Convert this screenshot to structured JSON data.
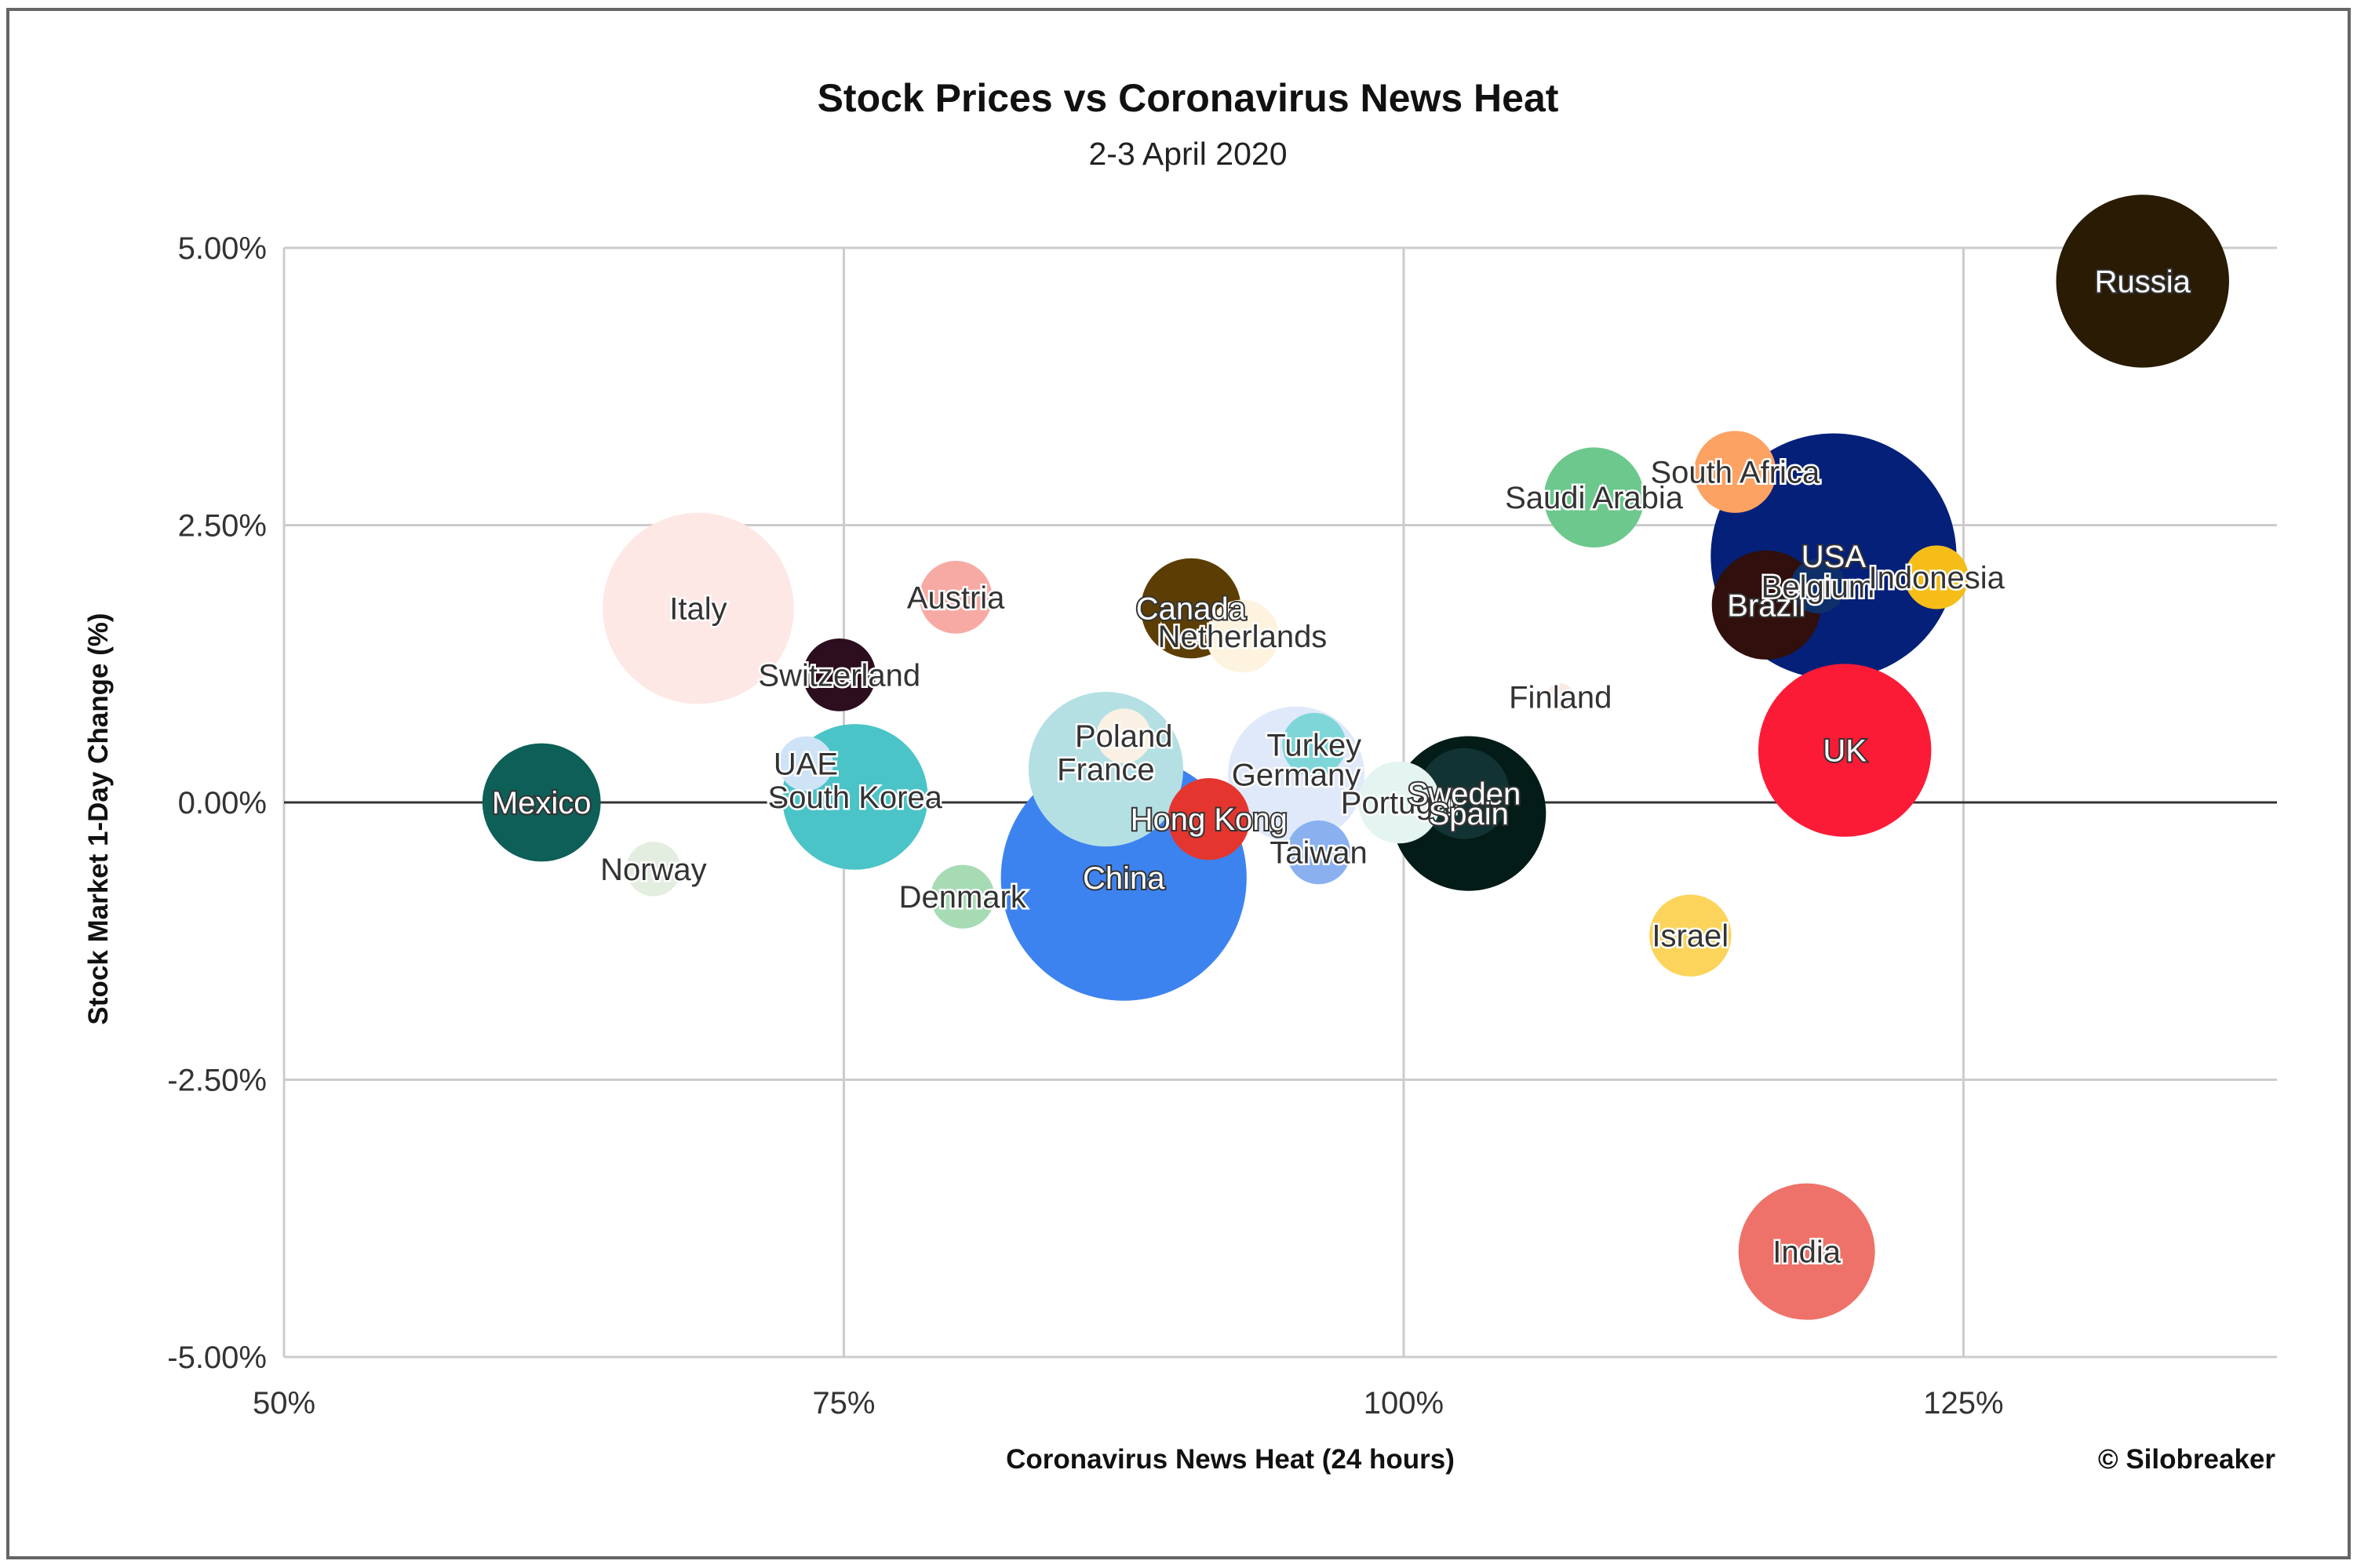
{
  "chart_data": {
    "type": "scatter",
    "title": "Stock Prices vs Coronavirus News Heat",
    "subtitle": "2-3 April 2020",
    "xlabel": "Coronavirus News Heat (24 hours)",
    "ylabel": "Stock Market 1-Day Change (%)",
    "credit": "© Silobreaker",
    "xlim": [
      50,
      139
    ],
    "ylim": [
      -5,
      5
    ],
    "x_ticks": [
      50,
      75,
      100,
      125
    ],
    "x_tick_labels": [
      "50%",
      "75%",
      "100%",
      "125%"
    ],
    "y_ticks": [
      5,
      2.5,
      0,
      -2.5,
      -5
    ],
    "y_tick_labels": [
      "5.00%",
      "2.50%",
      "0.00%",
      "-2.50%",
      "-5.00%"
    ],
    "grid": true,
    "legend": "none",
    "points": [
      {
        "label": "Mexico",
        "x": 61.5,
        "y": 0.0,
        "size": 13,
        "color": "#0d5f58"
      },
      {
        "label": "Norway",
        "x": 66.5,
        "y": -0.6,
        "size": 6,
        "color": "#e4eee0"
      },
      {
        "label": "Italy",
        "x": 68.5,
        "y": 1.75,
        "size": 21,
        "color": "#fde8e6"
      },
      {
        "label": "Switzerland",
        "x": 74.8,
        "y": 1.15,
        "size": 8,
        "color": "#2c0e1e"
      },
      {
        "label": "UAE",
        "x": 73.3,
        "y": 0.35,
        "size": 6,
        "color": "#cfe3f7"
      },
      {
        "label": "South Korea",
        "x": 75.5,
        "y": 0.05,
        "size": 16,
        "color": "#4bc4c8"
      },
      {
        "label": "Austria",
        "x": 80.0,
        "y": 1.85,
        "size": 8,
        "color": "#f7aaa3"
      },
      {
        "label": "Denmark",
        "x": 80.3,
        "y": -0.85,
        "size": 7,
        "color": "#a6dbb4"
      },
      {
        "label": "Poland",
        "x": 87.5,
        "y": 0.6,
        "size": 6,
        "color": "#faf1e4"
      },
      {
        "label": "France",
        "x": 86.7,
        "y": 0.3,
        "size": 17,
        "color": "#b4e0e4"
      },
      {
        "label": "China",
        "x": 87.5,
        "y": -0.68,
        "size": 27,
        "color": "#3d83f0"
      },
      {
        "label": "Canada",
        "x": 90.5,
        "y": 1.75,
        "size": 11,
        "color": "#5c3e05"
      },
      {
        "label": "Netherlands",
        "x": 92.8,
        "y": 1.5,
        "size": 8,
        "color": "#fdf3df"
      },
      {
        "label": "Hong Kong",
        "x": 91.3,
        "y": -0.15,
        "size": 9,
        "color": "#e4362f"
      },
      {
        "label": "Turkey",
        "x": 96.0,
        "y": 0.52,
        "size": 7,
        "color": "#7ed6d8"
      },
      {
        "label": "Germany",
        "x": 95.2,
        "y": 0.25,
        "size": 15,
        "color": "#dfe9f9"
      },
      {
        "label": "Taiwan",
        "x": 96.2,
        "y": -0.45,
        "size": 7,
        "color": "#8ab0f0"
      },
      {
        "label": "Portugal",
        "x": 99.8,
        "y": 0.0,
        "size": 9,
        "color": "#e4f4f0"
      },
      {
        "label": "Sweden",
        "x": 102.7,
        "y": 0.08,
        "size": 10,
        "color": "#123333"
      },
      {
        "label": "Spain",
        "x": 102.9,
        "y": -0.1,
        "size": 17,
        "color": "#041c18"
      },
      {
        "label": "Finland",
        "x": 107.0,
        "y": 0.95,
        "size": 3,
        "color": "#fbeae0"
      },
      {
        "label": "Saudi Arabia",
        "x": 108.5,
        "y": 2.75,
        "size": 11,
        "color": "#6dc88d"
      },
      {
        "label": "South Africa",
        "x": 114.8,
        "y": 2.98,
        "size": 9,
        "color": "#fca263"
      },
      {
        "label": "Israel",
        "x": 112.8,
        "y": -1.2,
        "size": 9,
        "color": "#fcd45c"
      },
      {
        "label": "Brazil",
        "x": 116.2,
        "y": 1.78,
        "size": 12,
        "color": "#300f0c"
      },
      {
        "label": "Belgium",
        "x": 118.5,
        "y": 1.95,
        "size": 6,
        "color": "#0e2f6a"
      },
      {
        "label": "USA",
        "x": 119.2,
        "y": 2.22,
        "size": 27,
        "color": "#042079"
      },
      {
        "label": "UK",
        "x": 119.7,
        "y": 0.47,
        "size": 19,
        "color": "#fb1b36"
      },
      {
        "label": "Indonesia",
        "x": 123.8,
        "y": 2.03,
        "size": 7,
        "color": "#f6bd19"
      },
      {
        "label": "India",
        "x": 118.0,
        "y": -4.05,
        "size": 15,
        "color": "#ee7269"
      },
      {
        "label": "Russia",
        "x": 133.0,
        "y": 4.7,
        "size": 19,
        "color": "#291b04"
      }
    ]
  }
}
